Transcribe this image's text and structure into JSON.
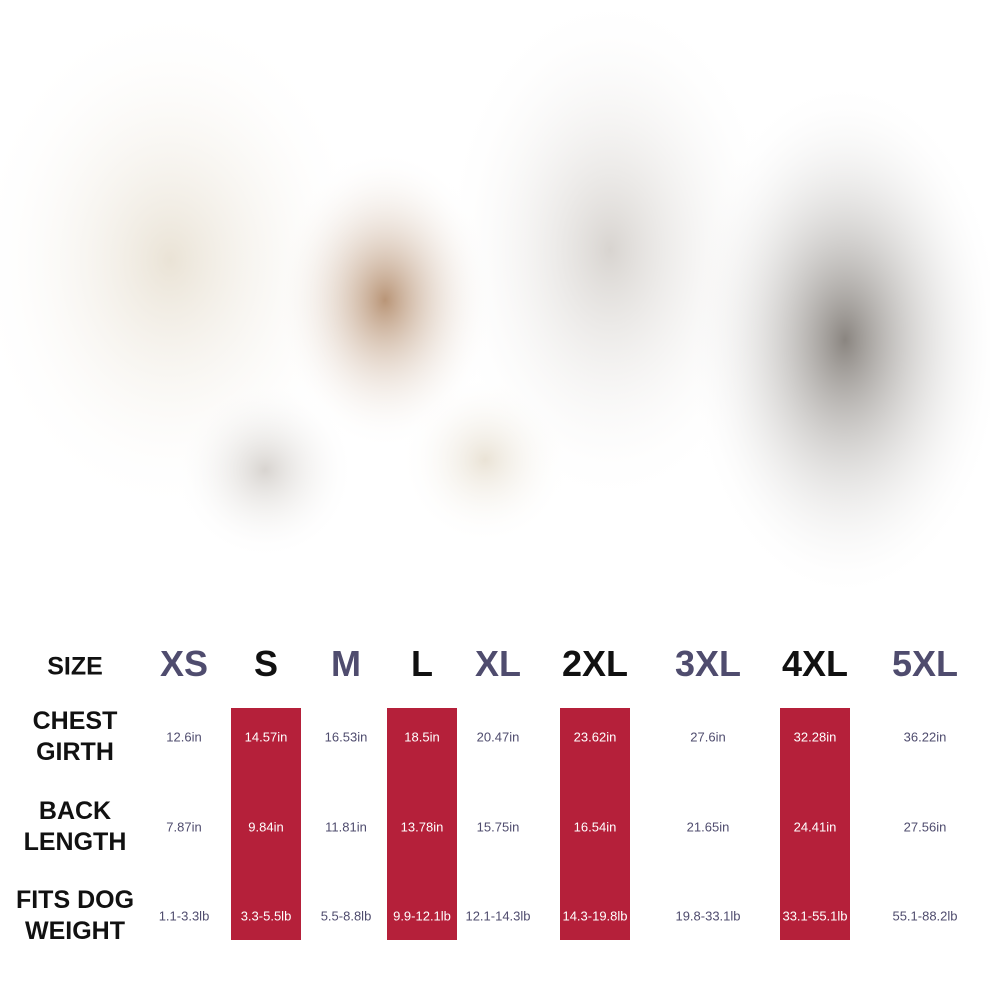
{
  "table": {
    "header": {
      "label": "SIZE",
      "sizes": [
        "XS",
        "S",
        "M",
        "L",
        "XL",
        "2XL",
        "3XL",
        "4XL",
        "5XL"
      ]
    },
    "rows": [
      {
        "label": [
          "CHEST",
          "GIRTH"
        ],
        "cells": [
          "12.6in",
          "14.57in",
          "16.53in",
          "18.5in",
          "20.47in",
          "23.62in",
          "27.6in",
          "32.28in",
          "36.22in"
        ]
      },
      {
        "label": [
          "BACK",
          "LENGTH"
        ],
        "cells": [
          "7.87in",
          "9.84in",
          "11.81in",
          "13.78in",
          "15.75in",
          "16.54in",
          "21.65in",
          "24.41in",
          "27.56in"
        ]
      },
      {
        "label": [
          "FITS DOG",
          "WEIGHT"
        ],
        "cells": [
          "1.1-3.3lb",
          "3.3-5.5lb",
          "5.5-8.8lb",
          "9.9-12.1lb",
          "12.1-14.3lb",
          "14.3-19.8lb",
          "19.8-33.1lb",
          "33.1-55.1lb",
          "55.1-88.2lb"
        ]
      }
    ]
  }
}
